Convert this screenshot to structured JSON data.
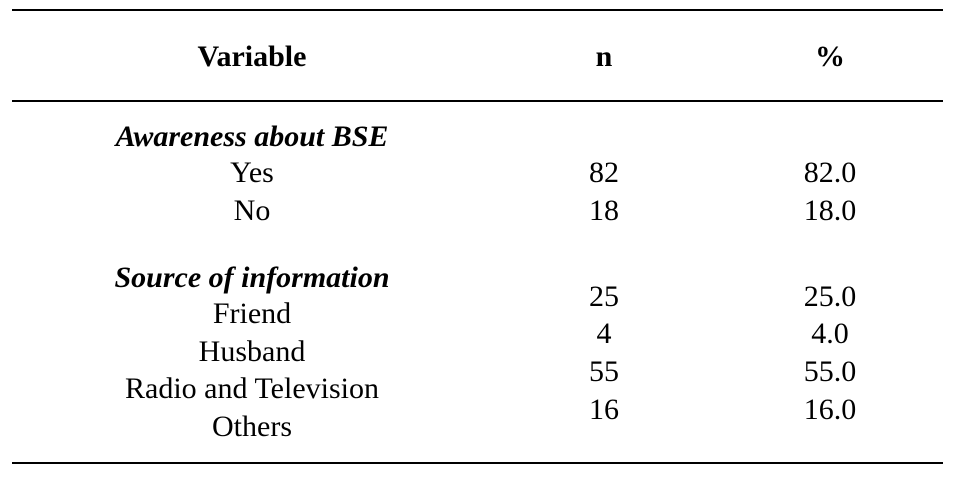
{
  "table": {
    "headers": {
      "variable": "Variable",
      "n": "n",
      "percent": "%"
    },
    "sections": [
      {
        "title": "Awareness about BSE",
        "rows": [
          {
            "label": "Yes",
            "n": "82",
            "percent": "82.0"
          },
          {
            "label": "No",
            "n": "18",
            "percent": "18.0"
          }
        ]
      },
      {
        "title": "Source of information",
        "rows": [
          {
            "label": "Friend",
            "n": "25",
            "percent": "25.0"
          },
          {
            "label": "Husband",
            "n": "4",
            "percent": "4.0"
          },
          {
            "label": "Radio and Television",
            "n": "55",
            "percent": "55.0"
          },
          {
            "label": "Others",
            "n": "16",
            "percent": "16.0"
          }
        ]
      }
    ]
  }
}
